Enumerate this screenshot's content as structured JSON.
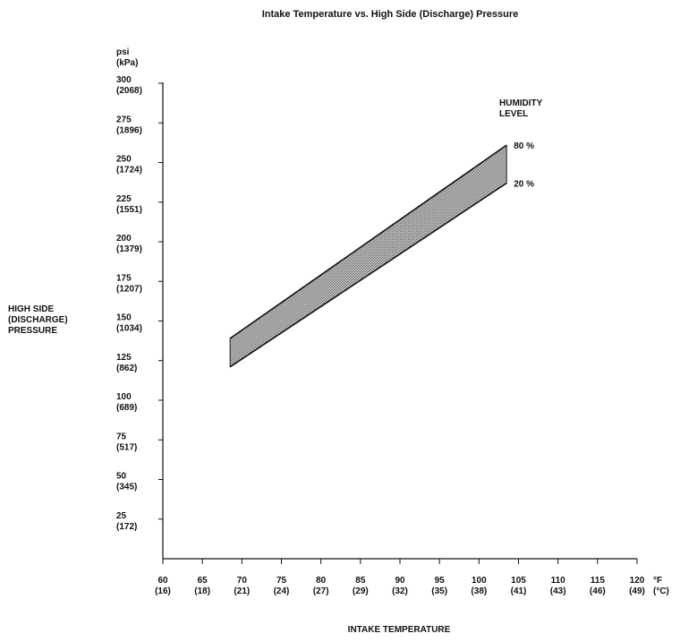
{
  "chart_data": {
    "type": "area",
    "title": "Intake Temperature vs. High Side (Discharge) Pressure",
    "xlabel": "INTAKE TEMPERATURE",
    "ylabel": [
      "HIGH SIDE",
      "(DISCHARGE)",
      "PRESSURE"
    ],
    "y_unit": [
      "psi",
      "(kPa)"
    ],
    "x_unit": [
      "°F",
      "(°C)"
    ],
    "xlim": [
      60,
      120
    ],
    "ylim": [
      0,
      300
    ],
    "x_ticks": [
      {
        "f": "60",
        "c": "(16)"
      },
      {
        "f": "65",
        "c": "(18)"
      },
      {
        "f": "70",
        "c": "(21)"
      },
      {
        "f": "75",
        "c": "(24)"
      },
      {
        "f": "80",
        "c": "(27)"
      },
      {
        "f": "85",
        "c": "(29)"
      },
      {
        "f": "90",
        "c": "(32)"
      },
      {
        "f": "95",
        "c": "(35)"
      },
      {
        "f": "100",
        "c": "(38)"
      },
      {
        "f": "105",
        "c": "(41)"
      },
      {
        "f": "110",
        "c": "(43)"
      },
      {
        "f": "115",
        "c": "(46)"
      },
      {
        "f": "120",
        "c": "(49)"
      }
    ],
    "y_ticks": [
      {
        "psi": "25",
        "kpa": "(172)"
      },
      {
        "psi": "50",
        "kpa": "(345)"
      },
      {
        "psi": "75",
        "kpa": "(517)"
      },
      {
        "psi": "100",
        "kpa": "(689)"
      },
      {
        "psi": "125",
        "kpa": "(862)"
      },
      {
        "psi": "150",
        "kpa": "(1034)"
      },
      {
        "psi": "175",
        "kpa": "(1207)"
      },
      {
        "psi": "200",
        "kpa": "(1379)"
      },
      {
        "psi": "225",
        "kpa": "(1551)"
      },
      {
        "psi": "250",
        "kpa": "(1724)"
      },
      {
        "psi": "275",
        "kpa": "(1896)"
      },
      {
        "psi": "300",
        "kpa": "(2068)"
      }
    ],
    "band_title": [
      "HUMIDITY",
      "LEVEL"
    ],
    "series": [
      {
        "name": "80 %",
        "x": [
          68.5,
          103.5
        ],
        "y": [
          139,
          261
        ]
      },
      {
        "name": "20 %",
        "x": [
          68.5,
          103.5
        ],
        "y": [
          121,
          237
        ]
      }
    ],
    "band_fill": "#a0a0a0",
    "grid": false
  }
}
